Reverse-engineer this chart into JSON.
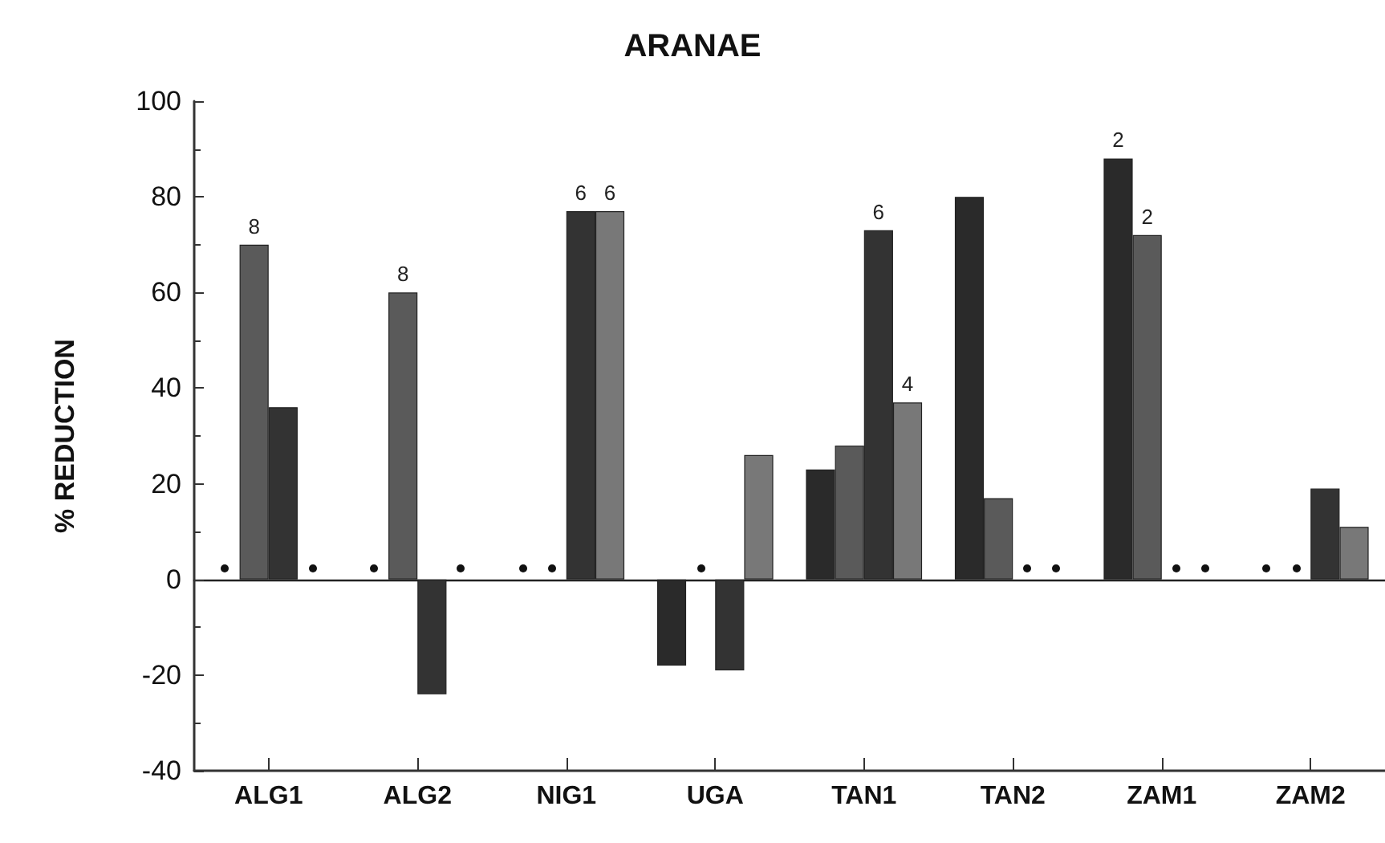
{
  "chart_data": {
    "type": "bar",
    "title": "ARANAE",
    "ylabel": "% REDUCTION",
    "categories": [
      "ALG1",
      "ALG2",
      "NIG1",
      "UGA",
      "TAN1",
      "TAN2",
      "ZAM1",
      "ZAM2"
    ],
    "series": [
      {
        "color": "#2a2a2a",
        "values": [
          null,
          null,
          null,
          -18,
          23,
          80,
          88,
          null
        ]
      },
      {
        "color": "#5a5a5a",
        "values": [
          70,
          60,
          null,
          null,
          28,
          17,
          72,
          null
        ]
      },
      {
        "color": "#333333",
        "values": [
          36,
          -24,
          77,
          -19,
          73,
          null,
          null,
          19
        ]
      },
      {
        "color": "#787878",
        "values": [
          null,
          null,
          77,
          26,
          37,
          null,
          null,
          11
        ]
      }
    ],
    "annotations": [
      {
        "text": "8",
        "x": "ALG1",
        "y": 70
      },
      {
        "text": "8",
        "x": "ALG2",
        "y": 60
      },
      {
        "text": "6",
        "x": "NIG1",
        "y": 77
      },
      {
        "text": "6",
        "x": "NIG1",
        "y": 77
      },
      {
        "text": "6",
        "x": "TAN1",
        "y": 73
      },
      {
        "text": "4",
        "x": "TAN1",
        "y": 37
      },
      "2",
      {
        "text": "2",
        "x": "ZAM1",
        "y": 72
      }
    ],
    "ylim": [
      -40,
      100
    ],
    "yticks": [
      -40,
      -20,
      0,
      20,
      40,
      60,
      80,
      100
    ]
  }
}
